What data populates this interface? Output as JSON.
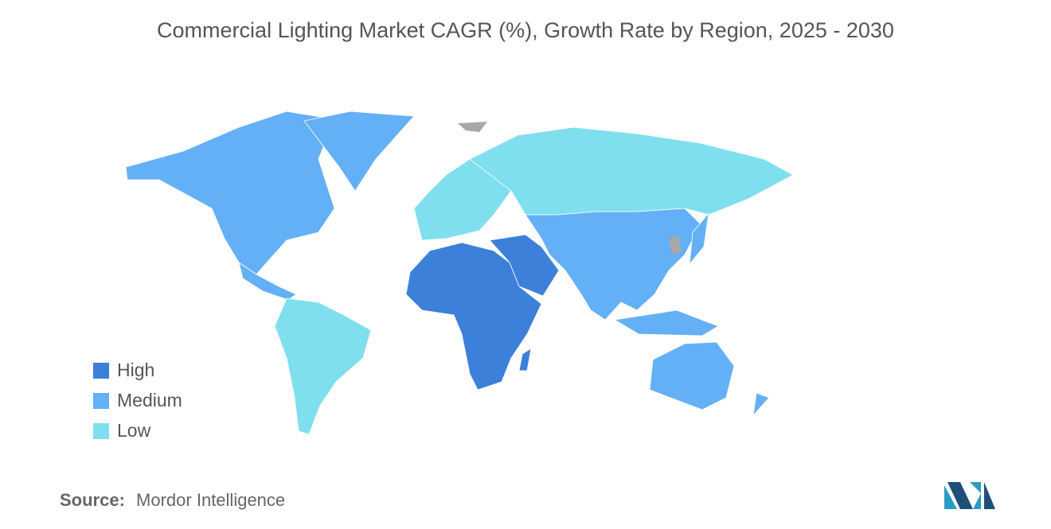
{
  "title": "Commercial Lighting Market CAGR (%), Growth Rate by Region, 2025 - 2030",
  "legend": [
    {
      "label": "High",
      "color": "#3d80da"
    },
    {
      "label": "Medium",
      "color": "#64b0f6"
    },
    {
      "label": "Low",
      "color": "#80dfee"
    }
  ],
  "source": {
    "label": "Source:",
    "text": "Mordor Intelligence"
  }
}
